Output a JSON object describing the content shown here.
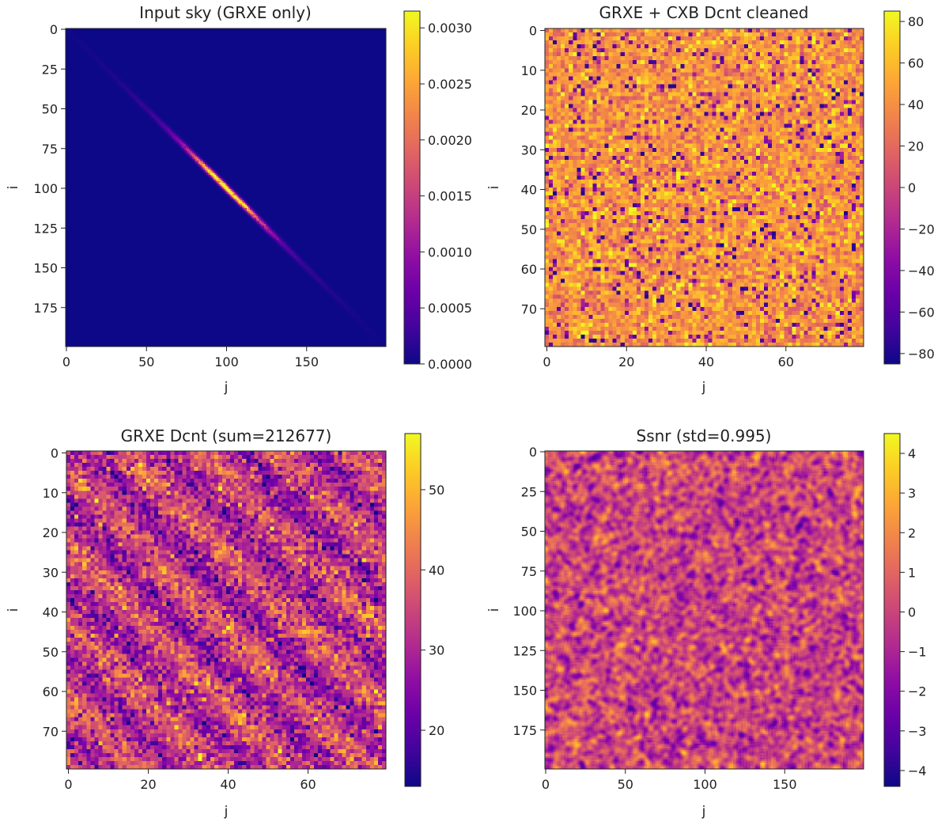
{
  "palette": [
    "#0d0887",
    "#41049d",
    "#6a00a8",
    "#8f0da4",
    "#b12a90",
    "#cb4679",
    "#e16462",
    "#f1834b",
    "#fca636",
    "#fccd25",
    "#f0f921"
  ],
  "chart_data": [
    {
      "type": "heatmap",
      "title": "Input sky (GRXE only)",
      "xlabel": "j",
      "ylabel": "i",
      "grid_size": 200,
      "xlim": [
        0,
        199
      ],
      "ylim": [
        199,
        0
      ],
      "x_ticks": [
        "0",
        "50",
        "100",
        "150"
      ],
      "y_ticks": [
        "0",
        "25",
        "50",
        "75",
        "100",
        "125",
        "150",
        "175"
      ],
      "colorbar": {
        "min": 0.0,
        "max": 0.00315,
        "ticks": [
          "0.0000",
          "0.0005",
          "0.0010",
          "0.0015",
          "0.0020",
          "0.0025",
          "0.0030"
        ]
      },
      "pattern": "narrow diagonal ridge from (i=0,j=0) to (i=199,j=199), peak ~0.0031 near i=j=100, zero background"
    },
    {
      "type": "heatmap",
      "title": "GRXE + CXB Dcnt cleaned",
      "xlabel": "j",
      "ylabel": "i",
      "grid_size": 80,
      "xlim": [
        0,
        79
      ],
      "ylim": [
        79,
        0
      ],
      "x_ticks": [
        "0",
        "20",
        "40",
        "60"
      ],
      "y_ticks": [
        "0",
        "10",
        "20",
        "30",
        "40",
        "50",
        "60",
        "70"
      ],
      "colorbar": {
        "min": -85,
        "max": 85,
        "ticks": [
          "80",
          "60",
          "40",
          "20",
          "0",
          "−20",
          "−40",
          "−60",
          "−80"
        ]
      },
      "pattern": "noise, mostly positive values 20 to 70 with scattered negatives"
    },
    {
      "type": "heatmap",
      "title": "GRXE Dcnt (sum=212677)",
      "xlabel": "j",
      "ylabel": "i",
      "grid_size": 80,
      "xlim": [
        0,
        79
      ],
      "ylim": [
        79,
        0
      ],
      "x_ticks": [
        "0",
        "20",
        "40",
        "60"
      ],
      "y_ticks": [
        "0",
        "10",
        "20",
        "30",
        "40",
        "50",
        "60",
        "70"
      ],
      "colorbar": {
        "min": 13,
        "max": 57,
        "ticks": [
          "20",
          "30",
          "40",
          "50"
        ]
      },
      "pattern": "Poisson counts with diagonal stripes running upper-left to lower-right, mean ~33"
    },
    {
      "type": "heatmap",
      "title": "Ssnr (std=0.995)",
      "xlabel": "j",
      "ylabel": "i",
      "grid_size": 200,
      "xlim": [
        0,
        199
      ],
      "ylim": [
        199,
        0
      ],
      "x_ticks": [
        "0",
        "50",
        "100",
        "150"
      ],
      "y_ticks": [
        "0",
        "25",
        "50",
        "75",
        "100",
        "125",
        "150",
        "175"
      ],
      "colorbar": {
        "min": -4.4,
        "max": 4.5,
        "ticks": [
          "4",
          "3",
          "2",
          "1",
          "0",
          "−1",
          "−2",
          "−3",
          "−4"
        ]
      },
      "pattern": "smoothed noise with std ~1"
    }
  ]
}
